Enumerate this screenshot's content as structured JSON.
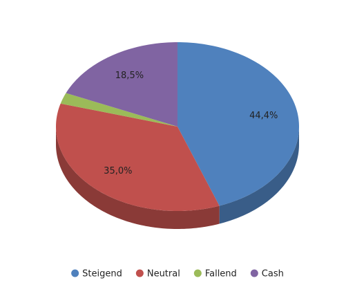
{
  "chart_data": {
    "type": "pie3d",
    "categories": [
      "Steigend",
      "Neutral",
      "Fallend",
      "Cash"
    ],
    "values": [
      44.4,
      35.0,
      2.1,
      18.5
    ],
    "value_labels": [
      "44,4%",
      "35,0%",
      null,
      "18,5%"
    ],
    "colors": [
      "#4f81bd",
      "#c0504d",
      "#9bbb59",
      "#8064a2"
    ],
    "legend": "bottom"
  }
}
